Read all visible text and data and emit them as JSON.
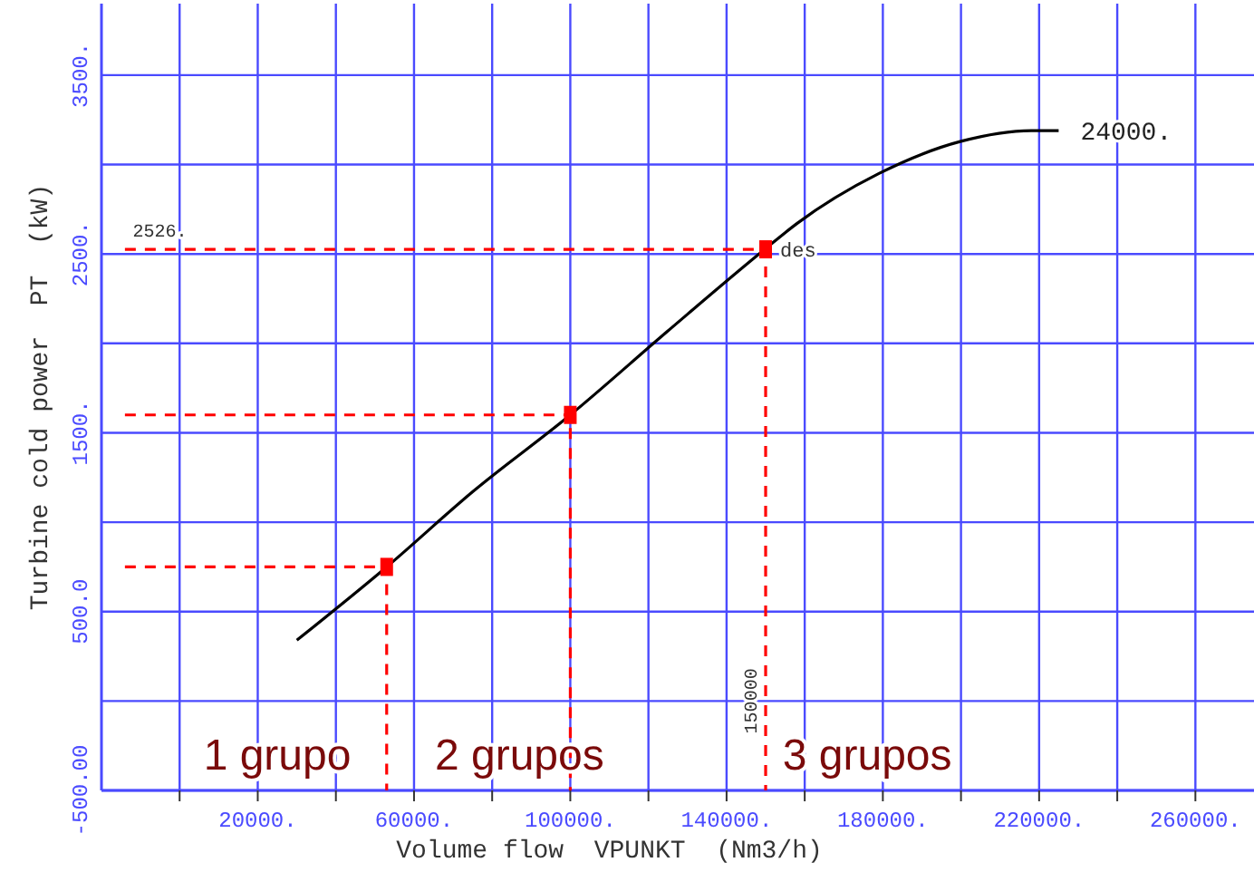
{
  "chart_data": {
    "type": "line",
    "xlabel": "Volume flow  VPUNKT  (Nm3/h)",
    "ylabel": "Turbine cold power  PT  (kW)",
    "xlim": [
      -20000,
      275000
    ],
    "ylim": [
      -500,
      3900
    ],
    "xticks": [
      {
        "value": 0,
        "label": null
      },
      {
        "value": 20000,
        "label": "20000."
      },
      {
        "value": 40000,
        "label": null
      },
      {
        "value": 60000,
        "label": "60000."
      },
      {
        "value": 80000,
        "label": null
      },
      {
        "value": 100000,
        "label": "100000."
      },
      {
        "value": 120000,
        "label": null
      },
      {
        "value": 140000,
        "label": "140000."
      },
      {
        "value": 160000,
        "label": null
      },
      {
        "value": 180000,
        "label": "180000."
      },
      {
        "value": 200000,
        "label": null
      },
      {
        "value": 220000,
        "label": "220000."
      },
      {
        "value": 240000,
        "label": null
      },
      {
        "value": 260000,
        "label": "260000."
      }
    ],
    "yticks": [
      {
        "value": -500,
        "label": "-500.00"
      },
      {
        "value": 0,
        "label": null
      },
      {
        "value": 500,
        "label": "500.0"
      },
      {
        "value": 1000,
        "label": null
      },
      {
        "value": 1500,
        "label": "1500."
      },
      {
        "value": 2000,
        "label": null
      },
      {
        "value": 2500,
        "label": "2500."
      },
      {
        "value": 3000,
        "label": null
      },
      {
        "value": 3500,
        "label": "3500."
      }
    ],
    "grid": true,
    "series": [
      {
        "color": "#000000",
        "line_style": "solid",
        "marker": "none",
        "x": [
          30000,
          53000,
          75000,
          100000,
          125000,
          150000,
          158000,
          179000,
          200000,
          218000,
          225000
        ],
        "values": [
          340,
          750,
          1170,
          1600,
          2070,
          2530,
          2670,
          2950,
          3130,
          3190,
          3190
        ]
      },
      {
        "type": "line",
        "color": "#ff0000",
        "line_style": "dashed",
        "marker": "none",
        "x": [
          -14000,
          53000,
          53000
        ],
        "values": [
          750,
          750,
          -500
        ]
      },
      {
        "type": "line",
        "color": "#ff0000",
        "line_style": "dashed",
        "marker": "none",
        "x": [
          -14000,
          100000,
          100000
        ],
        "values": [
          1600,
          1600,
          -500
        ]
      },
      {
        "type": "line",
        "color": "#ff0000",
        "line_style": "dashed",
        "marker": "none",
        "x": [
          -14000,
          150000,
          150000
        ],
        "values": [
          2526,
          2526,
          -500
        ]
      },
      {
        "type": "scatter",
        "color": "#ff0000",
        "marker": "square",
        "x": [
          53000,
          100000,
          150000
        ],
        "values": [
          750,
          1600,
          2526
        ]
      }
    ],
    "annotations": [
      {
        "text": "2526.",
        "x": -12000,
        "y": 2526
      },
      {
        "text": "des",
        "x": 150000,
        "y": 2526
      },
      {
        "text": "24000.",
        "x": 225000,
        "y": 3190
      },
      {
        "text": "150000",
        "x": 150000,
        "y": 0
      },
      "1 grupo",
      "2 grupos",
      "3 grupos"
    ]
  }
}
